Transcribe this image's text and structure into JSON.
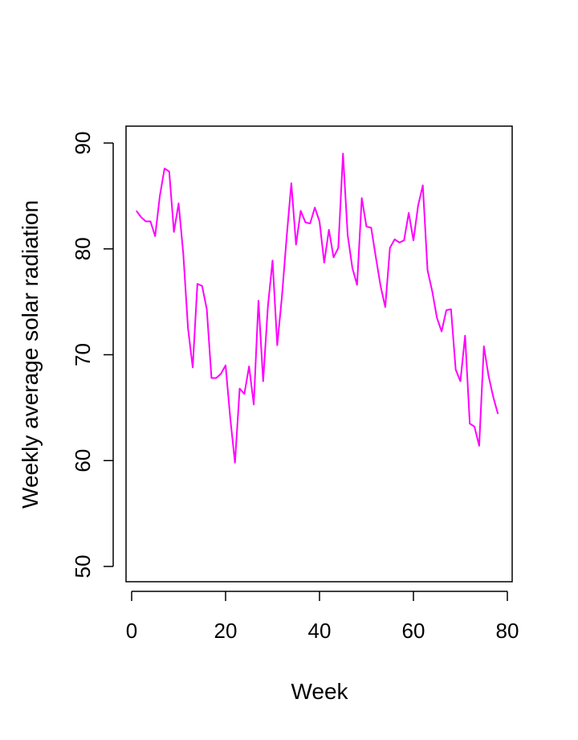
{
  "chart_data": {
    "type": "line",
    "title": "",
    "xlabel": "Week",
    "ylabel": "Weekly average solar radiation",
    "xlim": [
      0,
      80
    ],
    "ylim": [
      50,
      90
    ],
    "xticks": [
      0,
      20,
      40,
      60,
      80
    ],
    "yticks": [
      50,
      60,
      70,
      80,
      90
    ],
    "grid": false,
    "legend": "none",
    "series": [
      {
        "color": "#ff00ff",
        "x": [
          1,
          2,
          3,
          4,
          5,
          6,
          7,
          8,
          9,
          10,
          11,
          12,
          13,
          14,
          15,
          16,
          17,
          18,
          19,
          20,
          21,
          22,
          23,
          24,
          25,
          26,
          27,
          28,
          29,
          30,
          31,
          32,
          33,
          34,
          35,
          36,
          37,
          38,
          39,
          40,
          41,
          42,
          43,
          44,
          45,
          46,
          47,
          48,
          49,
          50,
          51,
          52,
          53,
          54,
          55,
          56,
          57,
          58,
          59,
          60,
          61,
          62,
          63,
          64,
          65,
          66,
          67,
          68,
          69,
          70,
          71,
          72,
          73,
          74,
          75,
          76,
          77,
          78
        ],
        "values": [
          83.6,
          83.0,
          82.6,
          82.6,
          81.2,
          85.0,
          87.6,
          87.3,
          81.6,
          84.3,
          79.5,
          72.5,
          68.8,
          76.7,
          76.5,
          74.3,
          67.8,
          67.8,
          68.2,
          69.0,
          64.0,
          59.8,
          66.8,
          66.3,
          68.9,
          65.3,
          75.1,
          67.5,
          74.5,
          78.9,
          70.9,
          75.5,
          81.1,
          86.2,
          80.4,
          83.6,
          82.5,
          82.4,
          83.9,
          82.6,
          78.7,
          81.8,
          79.2,
          80.1,
          89.0,
          81.3,
          78.2,
          76.6,
          84.8,
          82.1,
          82.0,
          79.2,
          76.5,
          74.5,
          80.1,
          80.9,
          80.6,
          80.8,
          83.4,
          80.8,
          84.1,
          86.0,
          78.0,
          76.0,
          73.5,
          72.2,
          74.2,
          74.3,
          68.6,
          67.5,
          71.8,
          63.5,
          63.2,
          61.4,
          70.8,
          68.0,
          66.0,
          64.4
        ]
      }
    ]
  }
}
